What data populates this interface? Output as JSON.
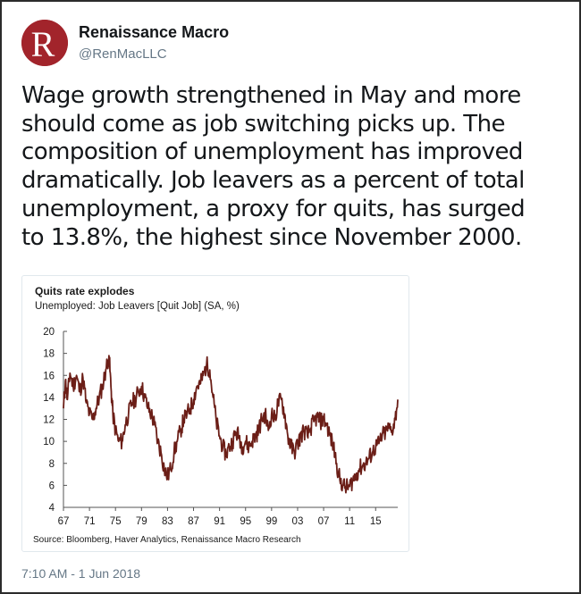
{
  "tweet": {
    "account_name": "Renaissance Macro",
    "handle": "@RenMacLLC",
    "avatar_letter": "R",
    "avatar_color": "#a2242b",
    "text_lines": [
      "Wage growth strengthened in May and more",
      "should come as job switching picks up. The",
      "composition of unemployment has improved",
      "dramatically. Job leavers as a percent of total",
      "unemployment, a proxy for quits, has surged",
      "to 13.8%, the highest since November 2000."
    ],
    "timestamp": "7:10 AM - 1 Jun 2018"
  },
  "chart_data": {
    "type": "line",
    "title": "Quits rate explodes",
    "subtitle": "Unemployed: Job Leavers [Quit Job] (SA, %)",
    "source": "Source: Bloomberg, Haver Analytics, Renaissance Macro Research",
    "xlabel": "",
    "ylabel": "",
    "x_tick_labels": [
      "67",
      "71",
      "75",
      "79",
      "83",
      "87",
      "91",
      "95",
      "99",
      "03",
      "07",
      "11",
      "15"
    ],
    "y_ticks": [
      4,
      6,
      8,
      10,
      12,
      14,
      16,
      18,
      20
    ],
    "xlim": [
      1967.0,
      2018.4
    ],
    "ylim": [
      4,
      20
    ],
    "grid": false,
    "line_color": "#6b1e17",
    "series": [
      {
        "x": [
          1967.0,
          1967.3,
          1967.6,
          1968.0,
          1968.5,
          1969.0,
          1969.5,
          1970.0,
          1970.5,
          1971.0,
          1971.5,
          1972.0,
          1972.5,
          1973.0,
          1973.5,
          1974.0,
          1974.3,
          1974.6,
          1975.0,
          1975.5,
          1976.0,
          1976.5,
          1977.0,
          1977.5,
          1978.0,
          1978.5,
          1979.0,
          1979.5,
          1980.0,
          1980.5,
          1981.0,
          1981.5,
          1982.0,
          1982.5,
          1983.0,
          1983.5,
          1984.0,
          1984.5,
          1985.0,
          1985.5,
          1986.0,
          1986.5,
          1987.0,
          1987.5,
          1988.0,
          1988.5,
          1989.0,
          1989.5,
          1990.0,
          1990.5,
          1991.0,
          1991.5,
          1992.0,
          1992.5,
          1993.0,
          1993.5,
          1994.0,
          1994.5,
          1995.0,
          1995.5,
          1996.0,
          1996.5,
          1997.0,
          1997.5,
          1998.0,
          1998.5,
          1999.0,
          1999.5,
          2000.0,
          2000.5,
          2001.0,
          2001.5,
          2002.0,
          2002.5,
          2003.0,
          2003.5,
          2004.0,
          2004.5,
          2005.0,
          2005.5,
          2006.0,
          2006.5,
          2007.0,
          2007.5,
          2008.0,
          2008.5,
          2009.0,
          2009.5,
          2010.0,
          2010.5,
          2011.0,
          2011.5,
          2012.0,
          2012.5,
          2013.0,
          2013.5,
          2014.0,
          2014.5,
          2015.0,
          2015.5,
          2016.0,
          2016.5,
          2017.0,
          2017.5,
          2018.0,
          2018.4
        ],
        "y": [
          13.0,
          15.5,
          13.8,
          16.2,
          15.0,
          16.0,
          14.5,
          15.8,
          13.5,
          12.5,
          12.0,
          13.0,
          14.0,
          15.0,
          16.5,
          17.8,
          15.0,
          12.5,
          11.0,
          10.0,
          10.0,
          11.5,
          12.5,
          13.5,
          13.8,
          14.5,
          15.0,
          14.0,
          13.0,
          12.5,
          11.5,
          10.0,
          9.0,
          7.5,
          6.8,
          7.5,
          9.0,
          10.0,
          11.0,
          12.0,
          12.5,
          13.0,
          13.8,
          15.0,
          15.2,
          16.0,
          17.0,
          16.5,
          14.0,
          11.8,
          10.5,
          9.5,
          8.8,
          9.5,
          10.0,
          10.8,
          10.5,
          9.5,
          10.0,
          9.5,
          10.0,
          10.5,
          11.0,
          12.0,
          12.5,
          11.0,
          12.5,
          12.0,
          13.5,
          13.8,
          12.5,
          10.5,
          9.5,
          9.0,
          9.8,
          10.5,
          11.0,
          10.5,
          11.2,
          11.8,
          12.2,
          11.8,
          12.0,
          11.5,
          10.5,
          9.5,
          8.0,
          6.5,
          6.0,
          5.8,
          5.9,
          6.5,
          7.0,
          7.5,
          7.8,
          8.0,
          8.5,
          9.0,
          9.5,
          9.8,
          10.5,
          10.8,
          11.2,
          11.0,
          12.0,
          13.8
        ]
      }
    ]
  }
}
